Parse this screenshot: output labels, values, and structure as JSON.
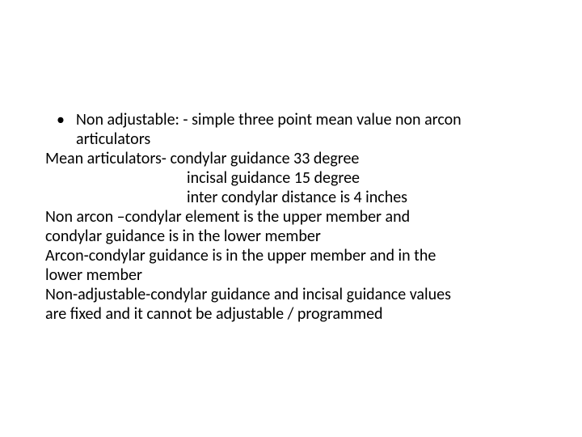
{
  "slide": {
    "bullet_char": "•",
    "bullet_line1": "Non adjustable: - simple three point mean value non arcon",
    "bullet_line2": "articulators",
    "line_mean_articulators": "Mean articulators- condylar guidance 33 degree",
    "line_incisal": "incisal guidance  15 degree",
    "line_inter_condylar": "inter condylar distance is 4 inches",
    "line_nonarcon1": "Non arcon –condylar element is the upper member and",
    "line_nonarcon2": "condylar guidance is in the lower member",
    "line_arcon1": "Arcon-condylar  guidance   is in the  upper member  and in the",
    "line_arcon2": "lower member",
    "line_nonadj1": "Non-adjustable-condylar  guidance and incisal guidance values",
    "line_nonadj2": "are fixed and it cannot be adjustable / programmed"
  },
  "style": {
    "font_size_pt": 20,
    "text_color": "#000000",
    "background_color": "#ffffff",
    "line_height": 1.2
  }
}
